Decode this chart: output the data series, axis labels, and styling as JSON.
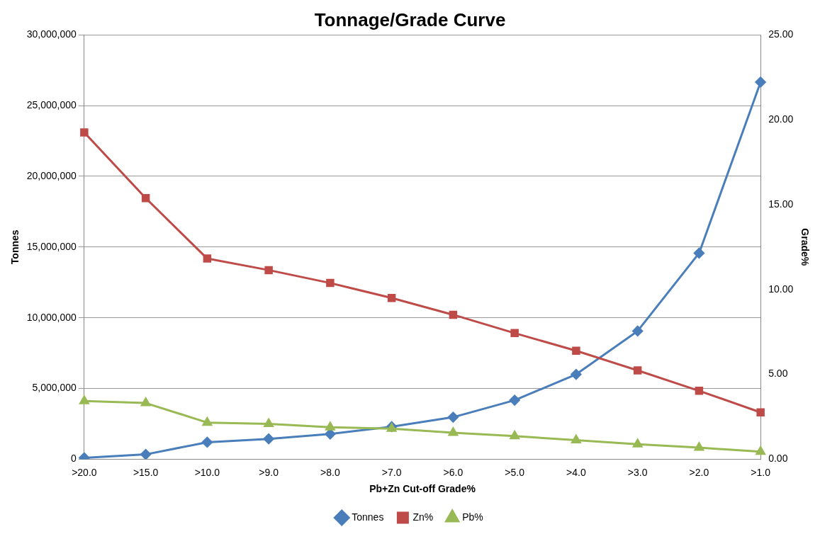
{
  "chart_data": {
    "type": "line",
    "title": "Tonnage/Grade Curve",
    "xlabel": "Pb+Zn Cut-off Grade%",
    "ylabel": "Tonnes",
    "y2label": "Grade%",
    "categories": [
      ">20.0",
      ">15.0",
      ">10.0",
      ">9.0",
      ">8.0",
      ">7.0",
      ">6.0",
      ">5.0",
      ">4.0",
      ">3.0",
      ">2.0",
      ">1.0"
    ],
    "series": [
      {
        "name": "Tonnes",
        "color": "#4a7ebb",
        "marker": "diamond",
        "values": [
          100000,
          340000,
          1200000,
          1440000,
          1780000,
          2300000,
          2970000,
          4170000,
          6000000,
          9060000,
          14570000,
          26660000
        ]
      },
      {
        "name": "Zn%",
        "color": "#be4b48",
        "marker": "square",
        "axis": "y2",
        "values": [
          19.25,
          15.38,
          11.82,
          11.14,
          10.38,
          9.5,
          8.51,
          7.43,
          6.39,
          5.23,
          4.03,
          2.76
        ]
      },
      {
        "name": "Pb%",
        "color": "#98b954",
        "marker": "triangle",
        "axis": "y2",
        "values": [
          3.43,
          3.31,
          2.16,
          2.08,
          1.88,
          1.8,
          1.56,
          1.36,
          1.12,
          0.88,
          0.68,
          0.44
        ]
      }
    ],
    "ylim": [
      0,
      30000000
    ],
    "yticks": [
      {
        "value": 0,
        "label": "0"
      },
      {
        "value": 5000000,
        "label": "5,000,000"
      },
      {
        "value": 10000000,
        "label": "10,000,000"
      },
      {
        "value": 15000000,
        "label": "15,000,000"
      },
      {
        "value": 20000000,
        "label": "20,000,000"
      },
      {
        "value": 25000000,
        "label": "25,000,000"
      },
      {
        "value": 30000000,
        "label": "30,000,000"
      }
    ],
    "y2lim": [
      0,
      25
    ],
    "y2ticks": [
      {
        "value": 0,
        "label": "0.00"
      },
      {
        "value": 5,
        "label": "5.00"
      },
      {
        "value": 10,
        "label": "10.00"
      },
      {
        "value": 15,
        "label": "15.00"
      },
      {
        "value": 20,
        "label": "20.00"
      },
      {
        "value": 25,
        "label": "25.00"
      }
    ],
    "grid": "y",
    "legend": "bottom",
    "line_style": "solid"
  }
}
